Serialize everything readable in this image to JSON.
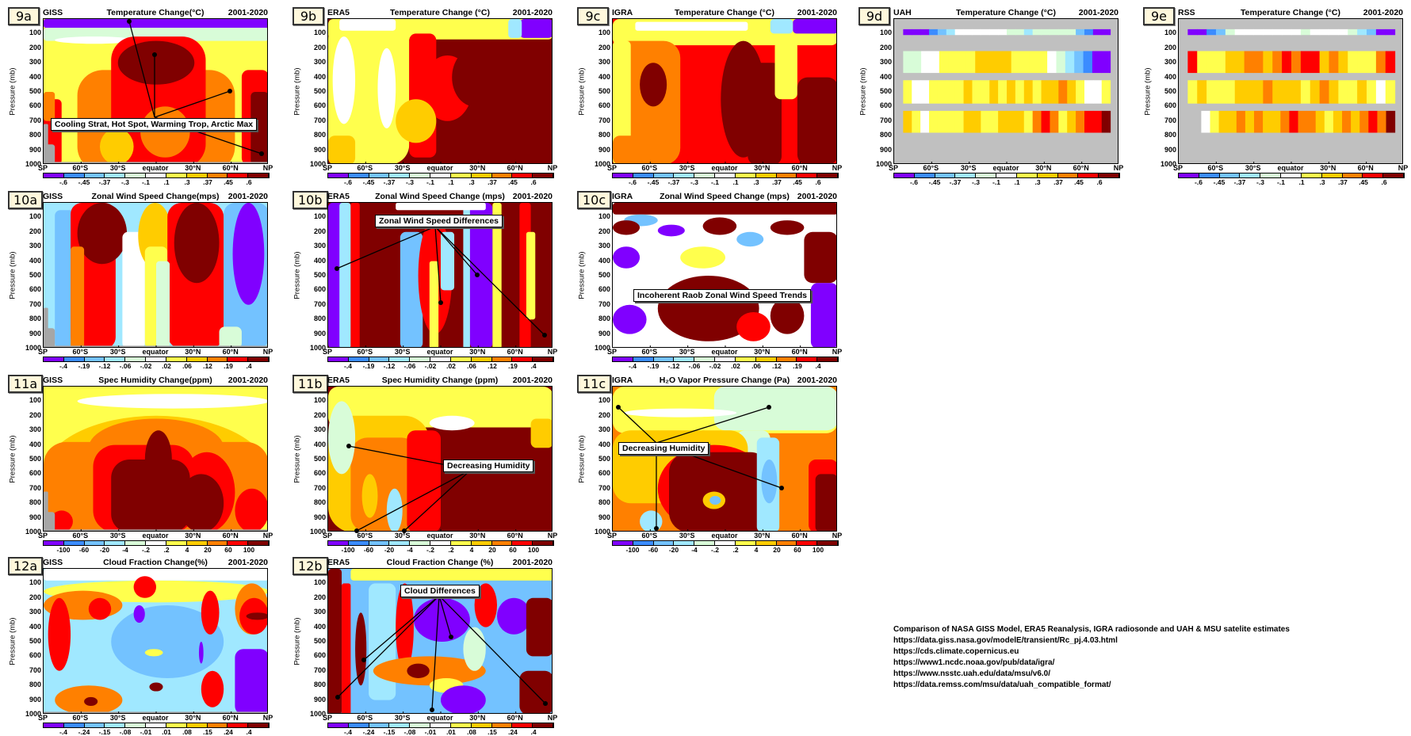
{
  "colors": [
    "#8000ff",
    "#3b8cff",
    "#73c2ff",
    "#a0e8ff",
    "#d8fcd8",
    "#ffffff",
    "#ffff4d",
    "#ffcc00",
    "#ff8000",
    "#ff0000",
    "#800000"
  ],
  "missing_color": "#a6a6a6",
  "axis": {
    "ylabel": "Pressure (mb)",
    "yticks": [
      "100",
      "200",
      "300",
      "400",
      "500",
      "600",
      "700",
      "800",
      "900",
      "1000"
    ],
    "xticks": [
      "SP",
      "60°S",
      "30°S",
      "equator",
      "30°N",
      "60°N",
      "NP"
    ]
  },
  "colorbars": {
    "temperature": [
      "-.6",
      "-.45",
      "-.37",
      "-.3",
      "-.1",
      ".1",
      ".3",
      ".37",
      ".45",
      ".6"
    ],
    "wind": [
      "-.4",
      "-.19",
      "-.12",
      "-.06",
      "-.02",
      ".02",
      ".06",
      ".12",
      ".19",
      ".4"
    ],
    "humidity": [
      "-100",
      "-60",
      "-20",
      "-4",
      "-.2",
      ".2",
      "4",
      "20",
      "60",
      "100"
    ],
    "cloud": [
      "-.4",
      "-.24",
      "-.15",
      "-.08",
      "-.01",
      ".01",
      ".08",
      ".15",
      ".24",
      ".4"
    ]
  },
  "panels": [
    {
      "id": "9a",
      "source": "GISS",
      "title": "Temperature Change(°C)",
      "period": "2001-2020",
      "colorbar": "temperature",
      "annotation": "Cooling Strat, Hot Spot, Warming Trop, Arctic Max"
    },
    {
      "id": "9b",
      "source": "ERA5",
      "title": "Temperature Change (°C)",
      "period": "2001-2020",
      "colorbar": "temperature"
    },
    {
      "id": "9c",
      "source": "IGRA",
      "title": "Temperature Change (°C)",
      "period": "2001-2020",
      "colorbar": "temperature"
    },
    {
      "id": "9d",
      "source": "UAH",
      "title": "Temperature Change (°C)",
      "period": "2001-2020",
      "colorbar": "temperature"
    },
    {
      "id": "9e",
      "source": "RSS",
      "title": "Temperature Change (°C)",
      "period": "2001-2020",
      "colorbar": "temperature"
    },
    {
      "id": "10a",
      "source": "GISS",
      "title": "Zonal Wind Speed Change(mps)",
      "period": "2001-2020",
      "colorbar": "wind"
    },
    {
      "id": "10b",
      "source": "ERA5",
      "title": "Zonal Wind Speed Change (mps)",
      "period": "2001-2020",
      "colorbar": "wind",
      "annotation": "Zonal Wind Speed Differences"
    },
    {
      "id": "10c",
      "source": "IGRA",
      "title": "Zonal Wind Speed Change (mps)",
      "period": "2001-2020",
      "colorbar": "wind",
      "annotation": "Incoherent Raob Zonal Wind Speed Trends"
    },
    {
      "id": "11a",
      "source": "GISS",
      "title": "Spec Humidity Change(ppm)",
      "period": "2001-2020",
      "colorbar": "humidity"
    },
    {
      "id": "11b",
      "source": "ERA5",
      "title": "Spec Humidity Change (ppm)",
      "period": "2001-2020",
      "colorbar": "humidity",
      "annotation": "Decreasing Humidity"
    },
    {
      "id": "11c",
      "source": "IGRA",
      "title": "H₂O Vapor Pressure Change (Pa)",
      "period": "2001-2020",
      "colorbar": "humidity",
      "annotation": "Decreasing Humidity"
    },
    {
      "id": "12a",
      "source": "GISS",
      "title": "Cloud Fraction Change(%)",
      "period": "2001-2020",
      "colorbar": "cloud"
    },
    {
      "id": "12b",
      "source": "ERA5",
      "title": "Cloud Fraction Change (%)",
      "period": "2001-2020",
      "colorbar": "cloud",
      "annotation": "Cloud Differences"
    }
  ],
  "footnote": {
    "lines": [
      "Comparison of NASA GISS Model, ERA5 Reanalysis, IGRA radiosonde and UAH & MSU satelite estimates",
      "https://data.giss.nasa.gov/modelE/transient/Rc_pj.4.03.html",
      "https://cds.climate.copernicus.eu",
      "https://www1.ncdc.noaa.gov/pub/data/igra/",
      "https://www.nsstc.uah.edu/data/msu/v6.0/",
      "https://data.remss.com/msu/data/uah_compatible_format/"
    ]
  }
}
